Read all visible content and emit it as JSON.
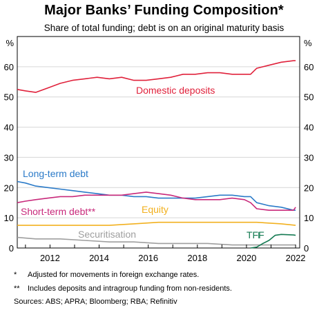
{
  "chart_data": {
    "type": "line",
    "title": "Major Banks’ Funding Composition*",
    "subtitle": "Share of total funding; debt is on an original maturity basis",
    "ylabel_left": "%",
    "ylabel_right": "%",
    "xlim": [
      "2010-09",
      "2022-03"
    ],
    "ylim": [
      0,
      70
    ],
    "x_ticks": [
      "2012",
      "2014",
      "2016",
      "2018",
      "2020",
      "2022"
    ],
    "y_ticks": [
      "0",
      "10",
      "20",
      "30",
      "40",
      "50",
      "60"
    ],
    "grid": true,
    "series": [
      {
        "name": "Domestic deposits",
        "color": "#e0203a",
        "points": [
          [
            "2010-09",
            52.5
          ],
          [
            "2011-01",
            52
          ],
          [
            "2011-06",
            51.5
          ],
          [
            "2011-12",
            53
          ],
          [
            "2012-06",
            54.5
          ],
          [
            "2012-12",
            55.5
          ],
          [
            "2013-06",
            56
          ],
          [
            "2013-12",
            56.5
          ],
          [
            "2014-06",
            56
          ],
          [
            "2014-12",
            56.5
          ],
          [
            "2015-06",
            55.5
          ],
          [
            "2015-12",
            55.5
          ],
          [
            "2016-06",
            56
          ],
          [
            "2016-12",
            56.5
          ],
          [
            "2017-06",
            57.5
          ],
          [
            "2017-12",
            57.5
          ],
          [
            "2018-06",
            58
          ],
          [
            "2018-12",
            58
          ],
          [
            "2019-06",
            57.5
          ],
          [
            "2019-12",
            57.5
          ],
          [
            "2020-03",
            57.5
          ],
          [
            "2020-06",
            59.5
          ],
          [
            "2020-12",
            60.5
          ],
          [
            "2021-06",
            61.5
          ],
          [
            "2021-12",
            62
          ],
          [
            "2022-01",
            62
          ]
        ]
      },
      {
        "name": "Long-term debt",
        "color": "#2a7ac8",
        "points": [
          [
            "2010-09",
            22
          ],
          [
            "2011-01",
            21.5
          ],
          [
            "2011-06",
            20.5
          ],
          [
            "2011-12",
            20
          ],
          [
            "2012-06",
            19.5
          ],
          [
            "2012-12",
            19
          ],
          [
            "2013-06",
            18.5
          ],
          [
            "2013-12",
            18
          ],
          [
            "2014-06",
            17.5
          ],
          [
            "2014-12",
            17.5
          ],
          [
            "2015-06",
            17
          ],
          [
            "2015-12",
            17
          ],
          [
            "2016-06",
            16.5
          ],
          [
            "2016-12",
            16.5
          ],
          [
            "2017-06",
            16.5
          ],
          [
            "2017-12",
            16.5
          ],
          [
            "2018-06",
            17
          ],
          [
            "2018-12",
            17.5
          ],
          [
            "2019-06",
            17.5
          ],
          [
            "2019-12",
            17
          ],
          [
            "2020-03",
            17
          ],
          [
            "2020-06",
            15
          ],
          [
            "2020-12",
            14
          ],
          [
            "2021-06",
            13.5
          ],
          [
            "2021-12",
            12.5
          ],
          [
            "2022-01",
            12.5
          ]
        ]
      },
      {
        "name": "Short-term debt**",
        "color": "#c8287a",
        "points": [
          [
            "2010-09",
            15
          ],
          [
            "2011-01",
            15.5
          ],
          [
            "2011-06",
            16
          ],
          [
            "2011-12",
            16.5
          ],
          [
            "2012-06",
            17
          ],
          [
            "2012-12",
            17
          ],
          [
            "2013-06",
            17.5
          ],
          [
            "2013-12",
            17.5
          ],
          [
            "2014-06",
            17.5
          ],
          [
            "2014-12",
            17.5
          ],
          [
            "2015-06",
            18
          ],
          [
            "2015-12",
            18.5
          ],
          [
            "2016-06",
            18
          ],
          [
            "2016-12",
            17.5
          ],
          [
            "2017-06",
            16.5
          ],
          [
            "2017-12",
            16
          ],
          [
            "2018-06",
            16
          ],
          [
            "2018-12",
            16
          ],
          [
            "2019-06",
            16.5
          ],
          [
            "2019-12",
            16
          ],
          [
            "2020-03",
            15
          ],
          [
            "2020-06",
            13
          ],
          [
            "2020-12",
            12.5
          ],
          [
            "2021-06",
            12.5
          ],
          [
            "2021-12",
            12.5
          ],
          [
            "2022-01",
            13.5
          ]
        ]
      },
      {
        "name": "Equity",
        "color": "#f2b01e",
        "points": [
          [
            "2010-09",
            7.5
          ],
          [
            "2011-06",
            7.5
          ],
          [
            "2012-06",
            7.5
          ],
          [
            "2013-06",
            7.5
          ],
          [
            "2014-06",
            7.5
          ],
          [
            "2015-06",
            8
          ],
          [
            "2016-06",
            8.5
          ],
          [
            "2017-06",
            8.5
          ],
          [
            "2018-06",
            8.5
          ],
          [
            "2019-06",
            8.5
          ],
          [
            "2020-06",
            8.5
          ],
          [
            "2021-06",
            8
          ],
          [
            "2022-01",
            7.5
          ]
        ]
      },
      {
        "name": "Securitisation",
        "color": "#9e9e9e",
        "points": [
          [
            "2010-09",
            3.5
          ],
          [
            "2011-06",
            3
          ],
          [
            "2012-06",
            3
          ],
          [
            "2013-06",
            2.5
          ],
          [
            "2014-06",
            2
          ],
          [
            "2015-06",
            2
          ],
          [
            "2016-06",
            1.5
          ],
          [
            "2017-06",
            1.5
          ],
          [
            "2018-06",
            1.5
          ],
          [
            "2019-06",
            1
          ],
          [
            "2020-06",
            1
          ],
          [
            "2021-06",
            1
          ],
          [
            "2022-01",
            1
          ]
        ]
      },
      {
        "name": "TFF",
        "color": "#147a52",
        "points": [
          [
            "2020-03",
            0
          ],
          [
            "2020-06",
            0.3
          ],
          [
            "2020-09",
            1.5
          ],
          [
            "2020-12",
            2.5
          ],
          [
            "2021-03",
            4.2
          ],
          [
            "2021-06",
            4.5
          ],
          [
            "2021-12",
            4.3
          ],
          [
            "2022-01",
            4.2
          ]
        ]
      }
    ]
  },
  "footnotes": [
    {
      "mark": "*",
      "text": "Adjusted for movements in foreign exchange rates."
    },
    {
      "mark": "**",
      "text": "Includes deposits and intragroup funding from non-residents."
    }
  ],
  "sources": "Sources: ABS; APRA; Bloomberg; RBA; Refinitiv"
}
